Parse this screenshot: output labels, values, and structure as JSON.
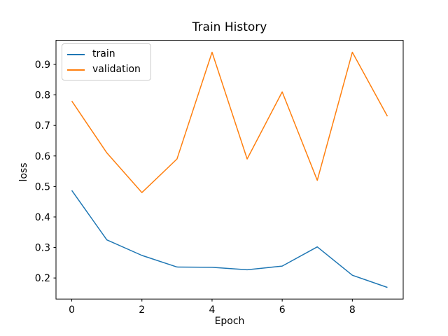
{
  "chart_data": {
    "type": "line",
    "title": "Train History",
    "xlabel": "Epoch",
    "ylabel": "loss",
    "x": [
      0,
      1,
      2,
      3,
      4,
      5,
      6,
      7,
      8,
      9
    ],
    "series": [
      {
        "name": "train",
        "color": "#1f77b4",
        "values": [
          0.487,
          0.325,
          0.274,
          0.236,
          0.235,
          0.227,
          0.239,
          0.302,
          0.209,
          0.169
        ]
      },
      {
        "name": "validation",
        "color": "#ff7f0e",
        "values": [
          0.78,
          0.61,
          0.48,
          0.59,
          0.94,
          0.59,
          0.81,
          0.52,
          0.94,
          0.73
        ]
      }
    ],
    "xlim": [
      -0.45,
      9.45
    ],
    "ylim": [
      0.131,
      0.979
    ],
    "xticks": [
      0,
      2,
      4,
      6,
      8
    ],
    "yticks": [
      0.2,
      0.3,
      0.4,
      0.5,
      0.6,
      0.7,
      0.8,
      0.9
    ],
    "grid": false,
    "legend_position": "upper left"
  },
  "colors": {
    "background": "#ffffff",
    "axis": "#000000",
    "tick_label": "#000000",
    "legend_border": "#cccccc",
    "train_line": "#1f77b4",
    "validation_line": "#ff7f0e"
  }
}
